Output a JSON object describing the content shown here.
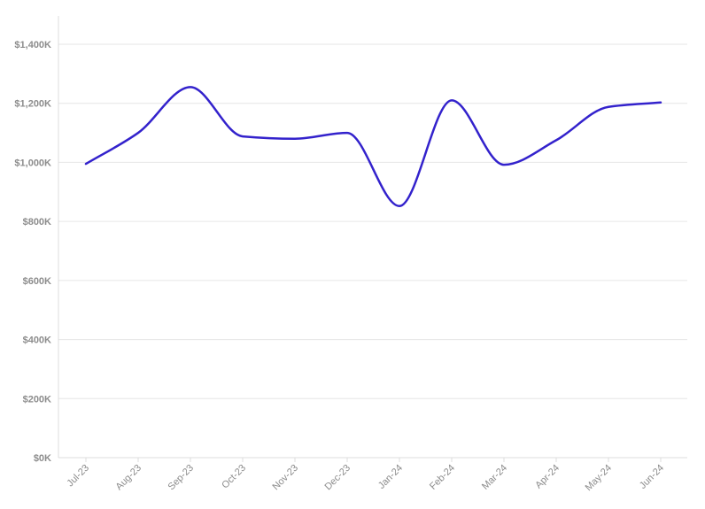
{
  "chart_data": {
    "type": "line",
    "categories": [
      "Jul-23",
      "Aug-23",
      "Sep-23",
      "Oct-23",
      "Nov-23",
      "Dec-23",
      "Jan-24",
      "Feb-24",
      "Mar-24",
      "Apr-24",
      "May-24",
      "Jun-24"
    ],
    "series": [
      {
        "values": [
          995000,
          1100000,
          1255000,
          1088000,
          1080000,
          1100000,
          852000,
          1210000,
          992000,
          1075000,
          1188000,
          1203000
        ]
      }
    ],
    "yticks": [
      "$0K",
      "$200K",
      "$400K",
      "$600K",
      "$800K",
      "$1,000K",
      "$1,200K",
      "$1,400K"
    ],
    "ylim": [
      0,
      1400000
    ],
    "ystep": 200000,
    "grid": true,
    "legend": "none",
    "line_color": "#3322cc"
  }
}
